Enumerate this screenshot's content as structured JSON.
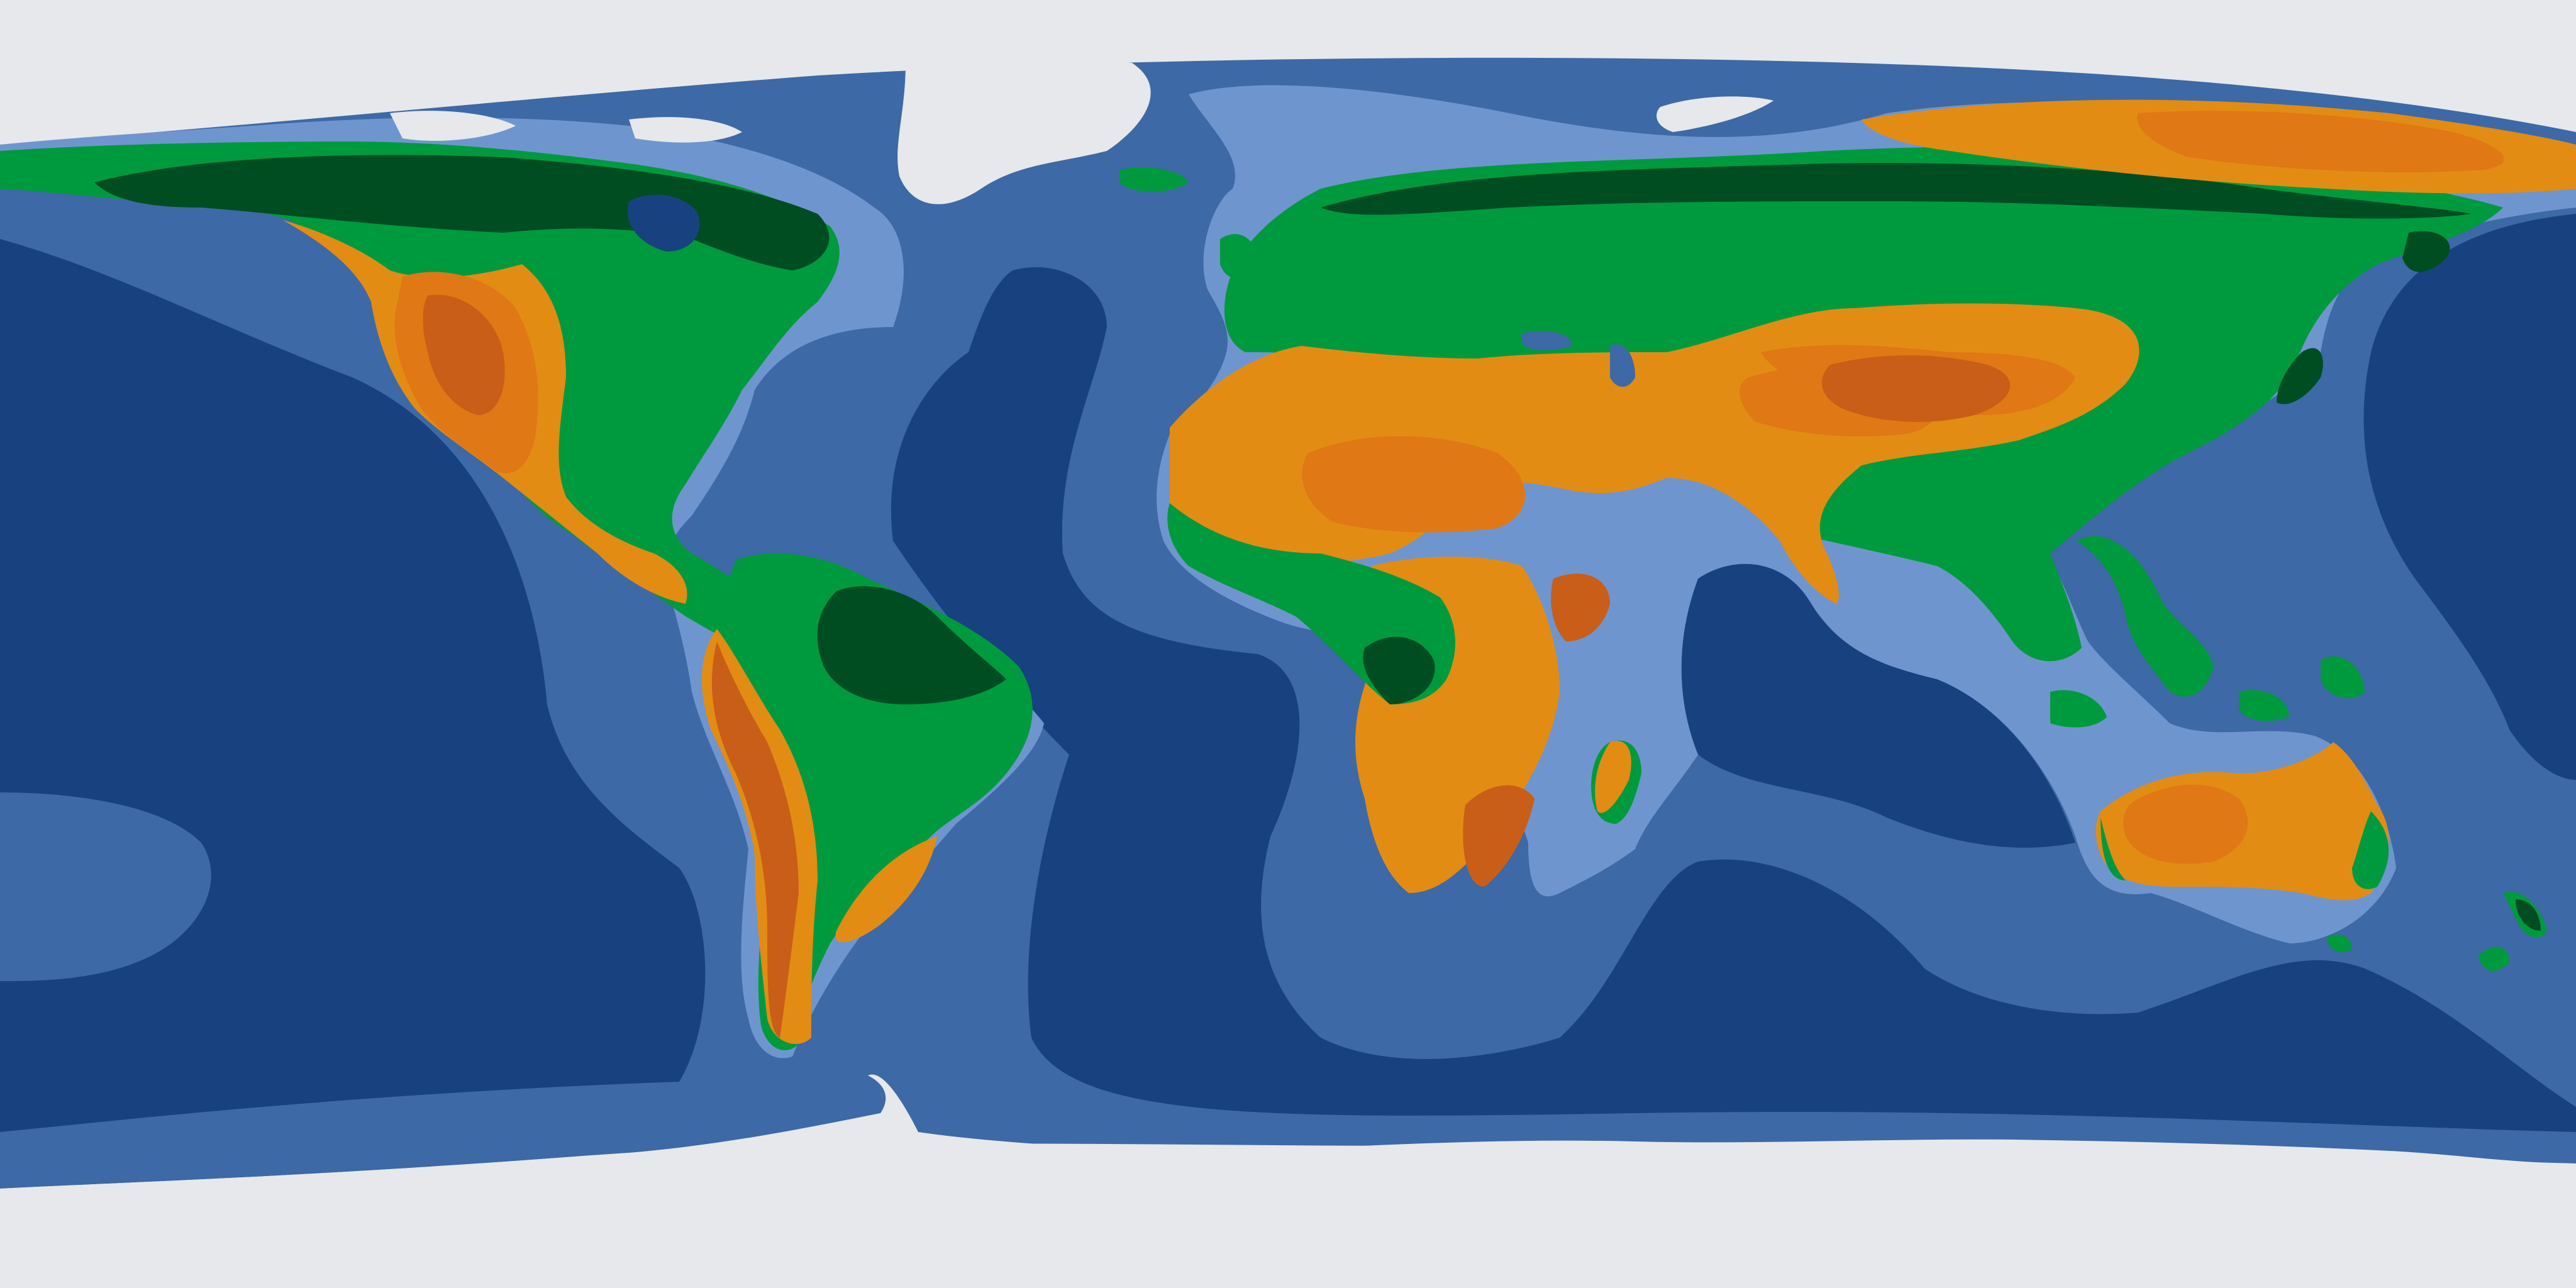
{
  "map": {
    "projection": "equirectangular",
    "style": "stylized climate-zone world map",
    "labels": [],
    "colors": {
      "polar_ice": "#e6e8eb",
      "ocean_deep": "#18427f",
      "ocean_shelf": "#3d69a6",
      "coast_halo": "#6f95cf",
      "forest_dense": "#004d22",
      "forest": "#009a3e",
      "semi_arid": "#e28c14",
      "arid": "#e07815",
      "hyper_arid": "#c95e18",
      "inland_sea": "#18427f"
    },
    "zones": [
      "ocean_deep",
      "ocean_shelf",
      "coast_halo",
      "polar_ice",
      "forest",
      "forest_dense",
      "semi_arid",
      "arid",
      "hyper_arid"
    ]
  }
}
